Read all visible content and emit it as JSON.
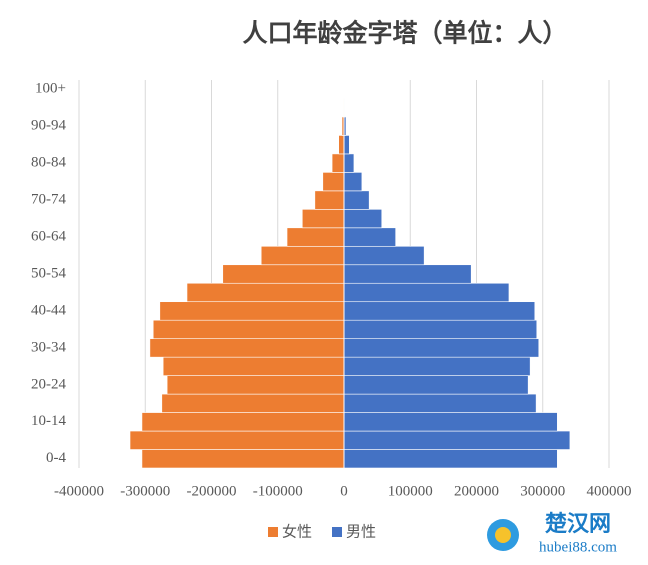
{
  "chart_data": {
    "type": "bar",
    "orientation": "horizontal",
    "title": "人口年龄金字塔（单位：人）",
    "categories": [
      "0-4",
      null,
      "10-14",
      null,
      "20-24",
      null,
      "30-34",
      null,
      "40-44",
      null,
      "50-54",
      null,
      "60-64",
      null,
      "70-74",
      null,
      "80-84",
      null,
      "90-94",
      null,
      "100+"
    ],
    "series": [
      {
        "name": "女性",
        "color": "#ED7D31",
        "values": [
          -305000,
          -323000,
          -305000,
          -275000,
          -267000,
          -273000,
          -293000,
          -288000,
          -278000,
          -237000,
          -183000,
          -125000,
          -86000,
          -63000,
          -44000,
          -32000,
          -18000,
          -8000,
          -3000,
          -1000,
          0
        ]
      },
      {
        "name": "男性",
        "color": "#4472C4",
        "values": [
          322000,
          341000,
          322000,
          290000,
          278000,
          281000,
          294000,
          291000,
          288000,
          249000,
          192000,
          121000,
          78000,
          57000,
          38000,
          27000,
          15000,
          8000,
          3000,
          1000,
          0
        ]
      }
    ],
    "xlim": [
      -400000,
      400000
    ],
    "xticks": [
      -400000,
      -300000,
      -200000,
      -100000,
      0,
      100000,
      200000,
      300000,
      400000
    ],
    "grid": true,
    "legend": "bottom"
  },
  "watermark": {
    "name": "楚汉网",
    "url": "hubei88.com"
  }
}
